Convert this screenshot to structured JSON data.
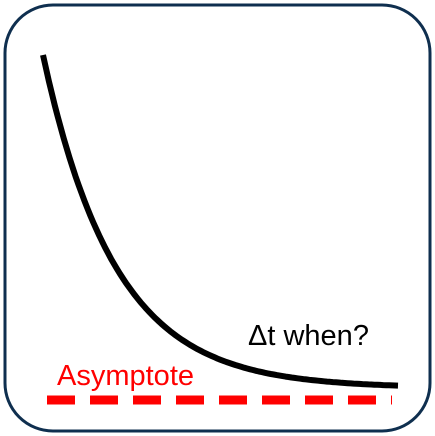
{
  "annotation": "Δt when?",
  "asymptote_label": "Asymptote",
  "colors": {
    "frame": "#0f2f4f",
    "curve": "#000000",
    "asymptote": "#ff0000",
    "background": "#ffffff"
  }
}
